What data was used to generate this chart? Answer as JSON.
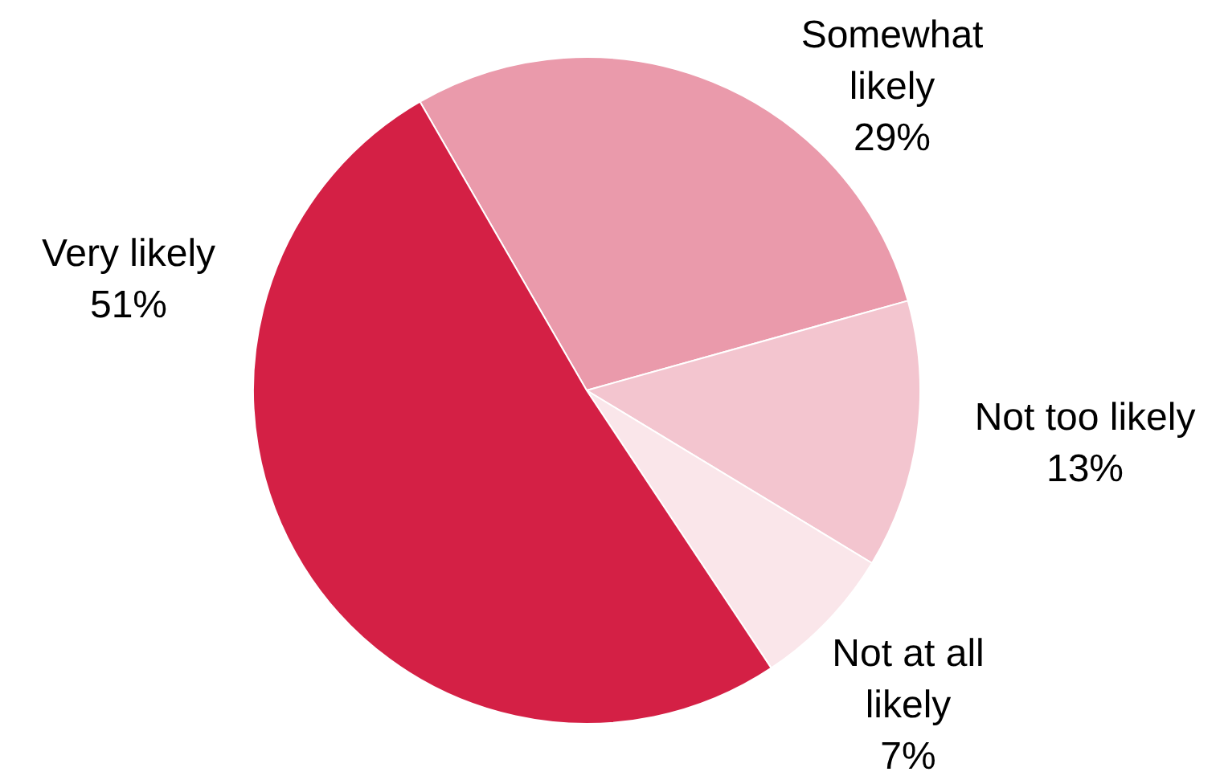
{
  "chart_data": {
    "type": "pie",
    "categories": [
      "Somewhat likely",
      "Not too likely",
      "Not at all likely",
      "Very likely"
    ],
    "values": [
      29,
      13,
      7,
      51
    ],
    "value_labels": [
      "29%",
      "13%",
      "7%",
      "51%"
    ],
    "colors": [
      "#ea9aab",
      "#f3c5cf",
      "#fae6ea",
      "#d42045"
    ],
    "legend": false
  }
}
